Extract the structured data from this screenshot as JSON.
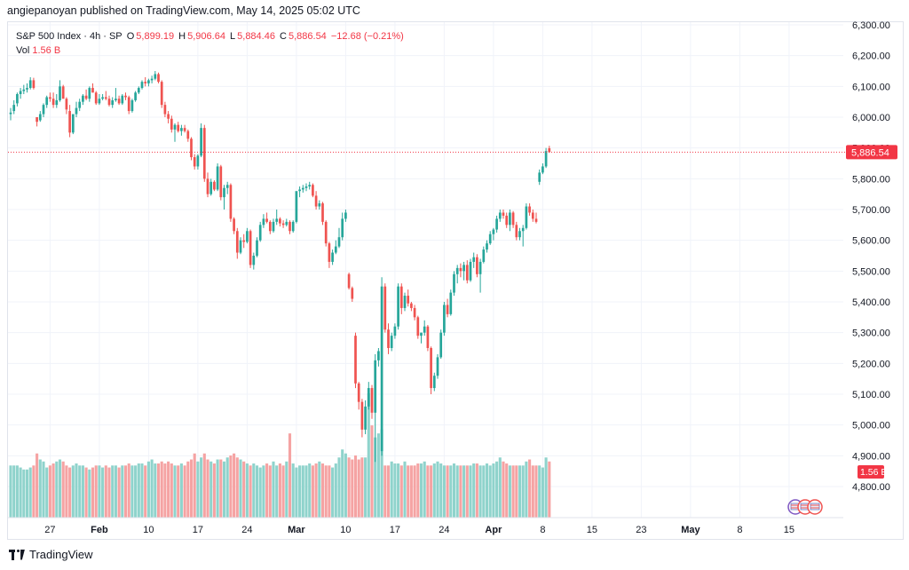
{
  "publisher_text": "angiepanoyan published on TradingView.com, May 14, 2025 05:02 UTC",
  "legend": {
    "symbol": "S&P 500 Index · 4h · SP",
    "open_label": "O",
    "open": "5,899.19",
    "high_label": "H",
    "high": "5,906.64",
    "low_label": "L",
    "low": "5,884.46",
    "close_label": "C",
    "close": "5,886.54",
    "change": "−12.68 (−0.21%)",
    "vol_label": "Vol",
    "vol": "1.56 B"
  },
  "footer": {
    "brand": "TradingView",
    "logo_icon": "tradingview-logo-icon"
  },
  "colors": {
    "up": "#26a69a",
    "down": "#ef5350",
    "up_vol": "#8fd3cc",
    "down_vol": "#f5a3a3",
    "price_tag": "#f23645"
  },
  "chart_data": {
    "type": "candlestick",
    "title": "S&P 500 Index · 4h · SP",
    "ylim": [
      4750,
      6320
    ],
    "y_ticks": [
      "6,300.00",
      "6,200.00",
      "6,100.00",
      "6,000.00",
      "5,900.00",
      "5,800.00",
      "5,700.00",
      "5,600.00",
      "5,500.00",
      "5,400.00",
      "5,300.00",
      "5,200.00",
      "5,100.00",
      "5,000.00",
      "4,900.00",
      "4,800.00"
    ],
    "y_tick_values": [
      6300,
      6200,
      6100,
      6000,
      5900,
      5800,
      5700,
      5600,
      5500,
      5400,
      5300,
      5200,
      5100,
      5000,
      4900,
      4800
    ],
    "x_ticks": [
      "27",
      "Feb",
      "10",
      "17",
      "24",
      "Mar",
      "10",
      "17",
      "24",
      "Apr",
      "8",
      "15",
      "23",
      "May",
      "8",
      "15"
    ],
    "x_tick_bars": [
      12,
      27,
      42,
      57,
      72,
      87,
      102,
      117,
      132,
      147,
      162,
      177,
      192,
      207,
      222,
      237
    ],
    "x_tick_bold": [
      false,
      true,
      false,
      false,
      false,
      true,
      false,
      false,
      false,
      true,
      false,
      false,
      false,
      true,
      false,
      false
    ],
    "last_price": 5886.54,
    "last_price_label": "5,886.54",
    "last_volume_label": "1.56 B",
    "volume_max_bn": 3.1,
    "candles_ohlc": [
      [
        6010,
        6030,
        5990,
        6015
      ],
      [
        6020,
        6055,
        6010,
        6040
      ],
      [
        6045,
        6080,
        6035,
        6075
      ],
      [
        6075,
        6095,
        6060,
        6085
      ],
      [
        6085,
        6105,
        6075,
        6090
      ],
      [
        6090,
        6110,
        6080,
        6095
      ],
      [
        6095,
        6130,
        6090,
        6120
      ],
      [
        6120,
        6128,
        6090,
        6095
      ],
      [
        6000,
        5990,
        5970,
        5985
      ],
      [
        5990,
        6020,
        5985,
        6010
      ],
      [
        6010,
        6045,
        6000,
        6040
      ],
      [
        6040,
        6070,
        6030,
        6065
      ],
      [
        6065,
        6080,
        6050,
        6060
      ],
      [
        6060,
        6080,
        6030,
        6040
      ],
      [
        6040,
        6075,
        6030,
        6055
      ],
      [
        6055,
        6120,
        6050,
        6100
      ],
      [
        6100,
        6105,
        6060,
        6060
      ],
      [
        6060,
        6065,
        6010,
        6025
      ],
      [
        6020,
        6040,
        5935,
        5950
      ],
      [
        5950,
        6010,
        5945,
        6010
      ],
      [
        6010,
        6050,
        6000,
        6030
      ],
      [
        6030,
        6060,
        6020,
        6050
      ],
      [
        6050,
        6075,
        6040,
        6070
      ],
      [
        6070,
        6090,
        6055,
        6060
      ],
      [
        6060,
        6100,
        6050,
        6095
      ],
      [
        6095,
        6110,
        6080,
        6080
      ],
      [
        6080,
        6085,
        6040,
        6045
      ],
      [
        6045,
        6075,
        6040,
        6060
      ],
      [
        6060,
        6075,
        6055,
        6065
      ],
      [
        6065,
        6085,
        6055,
        6060
      ],
      [
        6060,
        6070,
        6035,
        6040
      ],
      [
        6040,
        6065,
        6030,
        6055
      ],
      [
        6055,
        6095,
        6050,
        6060
      ],
      [
        6060,
        6070,
        6040,
        6045
      ],
      [
        6045,
        6075,
        6040,
        6070
      ],
      [
        6070,
        6080,
        6055,
        6065
      ],
      [
        6065,
        6070,
        6010,
        6020
      ],
      [
        6020,
        6060,
        6015,
        6055
      ],
      [
        6055,
        6085,
        6050,
        6080
      ],
      [
        6080,
        6100,
        6075,
        6095
      ],
      [
        6095,
        6120,
        6090,
        6115
      ],
      [
        6115,
        6130,
        6100,
        6110
      ],
      [
        6110,
        6125,
        6100,
        6120
      ],
      [
        6120,
        6135,
        6110,
        6125
      ],
      [
        6125,
        6150,
        6120,
        6140
      ],
      [
        6140,
        6145,
        6110,
        6115
      ],
      [
        6115,
        6120,
        6030,
        6040
      ],
      [
        6040,
        6050,
        6000,
        6010
      ],
      [
        6010,
        6020,
        5980,
        5995
      ],
      [
        5995,
        6005,
        5950,
        5960
      ],
      [
        5960,
        5980,
        5920,
        5975
      ],
      [
        5975,
        5985,
        5950,
        5955
      ],
      [
        5955,
        5975,
        5940,
        5965
      ],
      [
        5965,
        5975,
        5950,
        5955
      ],
      [
        5955,
        5960,
        5920,
        5930
      ],
      [
        5930,
        5935,
        5860,
        5870
      ],
      [
        5870,
        5880,
        5830,
        5840
      ],
      [
        5840,
        5880,
        5830,
        5875
      ],
      [
        5875,
        5980,
        5870,
        5965
      ],
      [
        5965,
        5975,
        5790,
        5800
      ],
      [
        5800,
        5820,
        5740,
        5750
      ],
      [
        5750,
        5800,
        5745,
        5790
      ],
      [
        5790,
        5795,
        5760,
        5765
      ],
      [
        5765,
        5850,
        5760,
        5840
      ],
      [
        5840,
        5845,
        5730,
        5740
      ],
      [
        5740,
        5780,
        5700,
        5770
      ],
      [
        5770,
        5790,
        5750,
        5780
      ],
      [
        5780,
        5785,
        5660,
        5670
      ],
      [
        5670,
        5675,
        5620,
        5630
      ],
      [
        5630,
        5640,
        5540,
        5560
      ],
      [
        5560,
        5610,
        5555,
        5600
      ],
      [
        5600,
        5620,
        5575,
        5595
      ],
      [
        5595,
        5640,
        5590,
        5630
      ],
      [
        5630,
        5635,
        5510,
        5520
      ],
      [
        5520,
        5560,
        5505,
        5550
      ],
      [
        5550,
        5610,
        5545,
        5600
      ],
      [
        5600,
        5660,
        5595,
        5650
      ],
      [
        5650,
        5685,
        5640,
        5670
      ],
      [
        5670,
        5690,
        5655,
        5660
      ],
      [
        5660,
        5665,
        5620,
        5630
      ],
      [
        5630,
        5670,
        5625,
        5660
      ],
      [
        5660,
        5700,
        5650,
        5670
      ],
      [
        5670,
        5675,
        5645,
        5655
      ],
      [
        5655,
        5665,
        5640,
        5650
      ],
      [
        5650,
        5670,
        5645,
        5660
      ],
      [
        5660,
        5665,
        5620,
        5630
      ],
      [
        5630,
        5665,
        5625,
        5660
      ],
      [
        5660,
        5740,
        5655,
        5760
      ],
      [
        5760,
        5775,
        5740,
        5765
      ],
      [
        5765,
        5780,
        5755,
        5770
      ],
      [
        5770,
        5785,
        5760,
        5775
      ],
      [
        5775,
        5790,
        5765,
        5780
      ],
      [
        5780,
        5785,
        5740,
        5745
      ],
      [
        5745,
        5760,
        5700,
        5710
      ],
      [
        5710,
        5730,
        5700,
        5720
      ],
      [
        5720,
        5725,
        5650,
        5660
      ],
      [
        5660,
        5665,
        5580,
        5590
      ],
      [
        5590,
        5595,
        5510,
        5530
      ],
      [
        5530,
        5570,
        5520,
        5560
      ],
      [
        5560,
        5600,
        5555,
        5580
      ],
      [
        5580,
        5640,
        5575,
        5610
      ],
      [
        5610,
        5690,
        5600,
        5670
      ],
      [
        5670,
        5700,
        5660,
        5690
      ],
      [
        5490,
        5495,
        5440,
        5445
      ],
      [
        5445,
        5450,
        5400,
        5410
      ],
      [
        5290,
        5300,
        5120,
        5135
      ],
      [
        5135,
        5140,
        5050,
        5075
      ],
      [
        5075,
        5085,
        4960,
        4985
      ],
      [
        4985,
        5080,
        4970,
        5060
      ],
      [
        5060,
        5140,
        5050,
        5120
      ],
      [
        5120,
        5130,
        5020,
        5040
      ],
      [
        5040,
        5230,
        4880,
        5210
      ],
      [
        5210,
        5250,
        5190,
        5240
      ],
      [
        4915,
        5480,
        4900,
        5450
      ],
      [
        5450,
        5460,
        5300,
        5310
      ],
      [
        5310,
        5330,
        5230,
        5250
      ],
      [
        5250,
        5300,
        5240,
        5290
      ],
      [
        5290,
        5330,
        5280,
        5320
      ],
      [
        5320,
        5460,
        5310,
        5450
      ],
      [
        5450,
        5460,
        5360,
        5380
      ],
      [
        5380,
        5430,
        5370,
        5420
      ],
      [
        5420,
        5440,
        5385,
        5395
      ],
      [
        5395,
        5400,
        5370,
        5380
      ],
      [
        5380,
        5390,
        5340,
        5350
      ],
      [
        5350,
        5355,
        5280,
        5290
      ],
      [
        5290,
        5300,
        5265,
        5300
      ],
      [
        5300,
        5340,
        5290,
        5320
      ],
      [
        5320,
        5325,
        5240,
        5250
      ],
      [
        5250,
        5255,
        5100,
        5120
      ],
      [
        5120,
        5170,
        5110,
        5160
      ],
      [
        5160,
        5230,
        5150,
        5220
      ],
      [
        5220,
        5310,
        5215,
        5300
      ],
      [
        5300,
        5400,
        5290,
        5390
      ],
      [
        5390,
        5410,
        5350,
        5360
      ],
      [
        5360,
        5440,
        5355,
        5430
      ],
      [
        5430,
        5500,
        5420,
        5490
      ],
      [
        5490,
        5520,
        5460,
        5510
      ],
      [
        5510,
        5525,
        5480,
        5500
      ],
      [
        5500,
        5530,
        5470,
        5520
      ],
      [
        5520,
        5535,
        5460,
        5470
      ],
      [
        5470,
        5540,
        5465,
        5530
      ],
      [
        5530,
        5560,
        5510,
        5545
      ],
      [
        5545,
        5555,
        5480,
        5490
      ],
      [
        5490,
        5540,
        5430,
        5530
      ],
      [
        5530,
        5580,
        5525,
        5570
      ],
      [
        5570,
        5600,
        5560,
        5590
      ],
      [
        5590,
        5630,
        5585,
        5620
      ],
      [
        5620,
        5640,
        5600,
        5635
      ],
      [
        5635,
        5680,
        5625,
        5670
      ],
      [
        5670,
        5700,
        5660,
        5690
      ],
      [
        5690,
        5700,
        5670,
        5680
      ],
      [
        5680,
        5690,
        5640,
        5650
      ],
      [
        5650,
        5700,
        5630,
        5690
      ],
      [
        5690,
        5695,
        5640,
        5650
      ],
      [
        5650,
        5660,
        5600,
        5610
      ],
      [
        5610,
        5640,
        5600,
        5630
      ],
      [
        5630,
        5650,
        5580,
        5640
      ],
      [
        5640,
        5720,
        5635,
        5710
      ],
      [
        5710,
        5720,
        5680,
        5690
      ],
      [
        5690,
        5700,
        5660,
        5670
      ],
      [
        5670,
        5690,
        5655,
        5660
      ],
      [
        5790,
        5830,
        5780,
        5820
      ],
      [
        5820,
        5850,
        5815,
        5840
      ],
      [
        5840,
        5900,
        5835,
        5890
      ],
      [
        5899,
        5907,
        5884,
        5887
      ]
    ],
    "volume_bn": [
      1.3,
      1.3,
      1.3,
      1.25,
      1.2,
      1.2,
      1.25,
      1.3,
      1.6,
      1.45,
      1.4,
      1.25,
      1.3,
      1.35,
      1.4,
      1.45,
      1.4,
      1.3,
      1.25,
      1.3,
      1.35,
      1.3,
      1.3,
      1.25,
      1.2,
      1.25,
      1.3,
      1.3,
      1.25,
      1.3,
      1.25,
      1.3,
      1.3,
      1.25,
      1.3,
      1.3,
      1.35,
      1.3,
      1.3,
      1.35,
      1.35,
      1.3,
      1.4,
      1.45,
      1.35,
      1.35,
      1.4,
      1.35,
      1.4,
      1.35,
      1.3,
      1.3,
      1.35,
      1.3,
      1.4,
      1.45,
      1.6,
      1.4,
      1.5,
      1.6,
      1.45,
      1.4,
      1.35,
      1.45,
      1.45,
      1.4,
      1.5,
      1.55,
      1.6,
      1.5,
      1.45,
      1.4,
      1.35,
      1.3,
      1.35,
      1.3,
      1.25,
      1.3,
      1.35,
      1.3,
      1.4,
      1.3,
      1.35,
      1.3,
      1.4,
      2.1,
      1.35,
      1.25,
      1.3,
      1.3,
      1.3,
      1.35,
      1.3,
      1.35,
      1.4,
      1.35,
      1.3,
      1.3,
      1.25,
      1.35,
      1.5,
      1.7,
      1.6,
      1.5,
      1.45,
      1.55,
      1.45,
      1.5,
      1.5,
      1.45,
      1.45,
      1.45,
      1.4,
      1.35,
      1.3,
      1.3,
      1.4,
      1.35,
      1.35,
      1.3,
      1.4,
      1.3,
      1.3,
      1.3,
      1.35,
      1.35,
      1.4,
      1.3,
      1.3,
      1.35,
      1.4,
      1.35,
      1.3,
      1.3,
      1.3,
      1.35,
      1.3,
      1.3,
      1.3,
      1.3,
      1.3,
      1.35,
      1.35,
      1.3,
      1.3,
      1.35,
      1.3,
      1.35,
      1.4,
      1.5,
      1.4,
      1.35,
      1.3,
      1.3,
      1.3,
      1.3,
      1.3,
      1.4,
      1.45,
      1.3,
      1.3,
      1.3,
      1.25,
      1.5,
      1.4,
      1.45,
      1.3
    ],
    "volume_spike_bn": [
      [
        109,
        3.1
      ],
      [
        110,
        2.3
      ],
      [
        111,
        2.0
      ],
      [
        112,
        2.1
      ],
      [
        113,
        2.2
      ]
    ]
  }
}
